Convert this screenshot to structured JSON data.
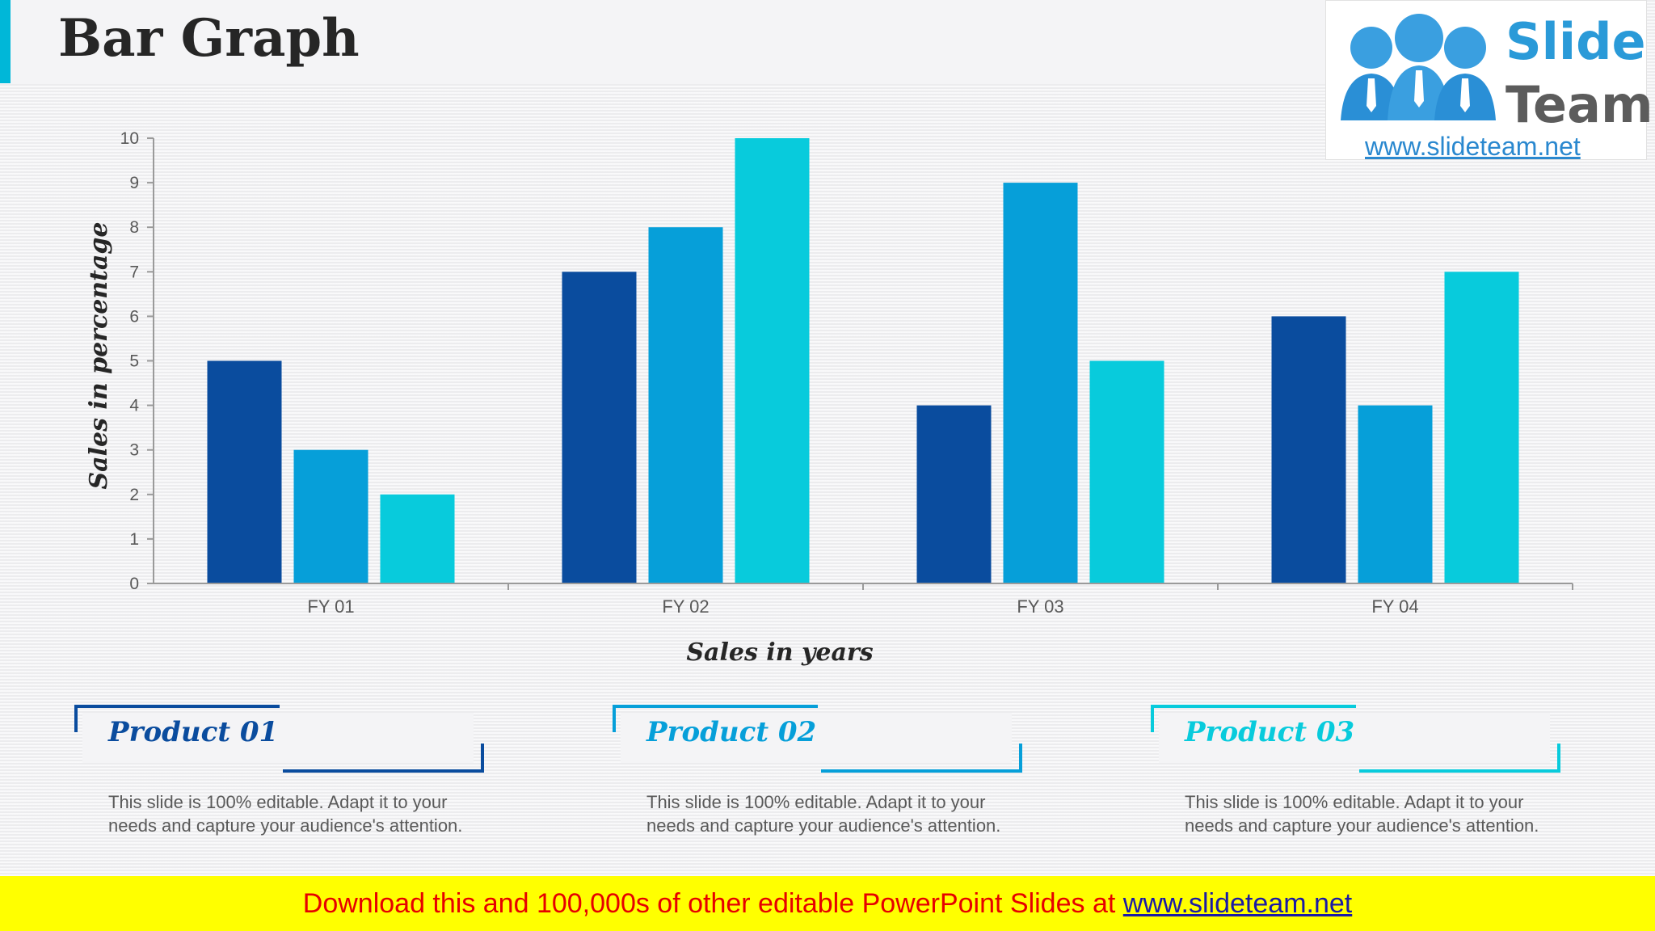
{
  "slide": {
    "title": "Bar Graph"
  },
  "logo": {
    "line1": "Slide",
    "line2": "Team",
    "url": "www.slideteam.net"
  },
  "colors": {
    "series1": "#0a4c9e",
    "series2": "#069fd9",
    "series3": "#08cbdc",
    "accent": "#00b7d8"
  },
  "chart_data": {
    "type": "bar",
    "categories": [
      "FY 01",
      "FY 02",
      "FY 03",
      "FY 04"
    ],
    "series": [
      {
        "values": [
          5,
          7,
          4,
          6
        ]
      },
      {
        "values": [
          3,
          8,
          9,
          4
        ]
      },
      {
        "values": [
          2,
          10,
          5,
          7
        ]
      }
    ],
    "yticks": [
      "0",
      "1",
      "2",
      "3",
      "4",
      "5",
      "6",
      "7",
      "8",
      "9",
      "10"
    ],
    "ylim": [
      0,
      10
    ],
    "xlabel": "Sales in years",
    "ylabel": "Sales in percentage",
    "grid": false,
    "legend": "none"
  },
  "products": [
    {
      "title": "Product 01",
      "color": "#0a4c9e",
      "desc_line1": "This slide is 100% editable. Adapt it to your",
      "desc_line2": "needs and capture your audience's attention."
    },
    {
      "title": "Product 02",
      "color": "#069fd9",
      "desc_line1": "This slide is 100% editable. Adapt it to your",
      "desc_line2": "needs and capture your audience's attention."
    },
    {
      "title": "Product 03",
      "color": "#08cbdc",
      "desc_line1": "This slide is 100% editable. Adapt it to your",
      "desc_line2": "needs and capture your audience's attention."
    }
  ],
  "banner": {
    "text": "Download this and 100,000s of other editable PowerPoint Slides at ",
    "link": "www.slideteam.net"
  }
}
